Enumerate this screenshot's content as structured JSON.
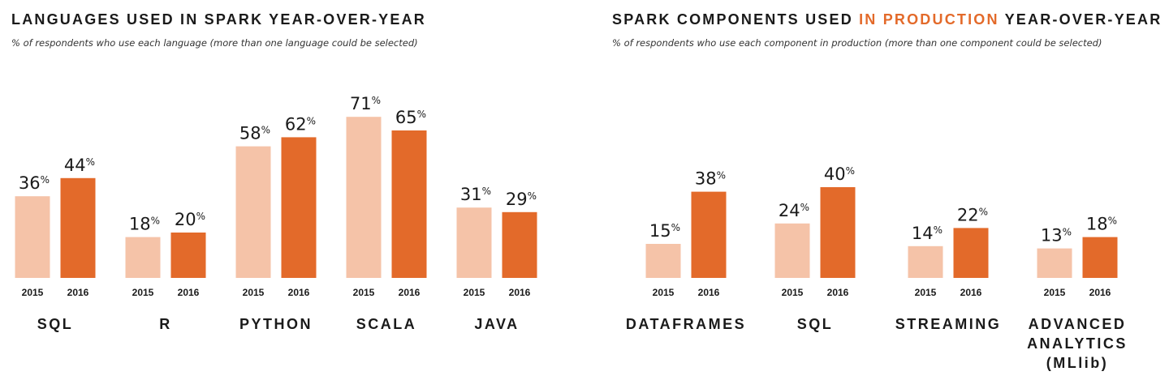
{
  "colors": {
    "y2015": "#f5c3a8",
    "y2016": "#e36a2a",
    "accent": "#e36a2a",
    "text": "#1a1a1a"
  },
  "chart_data": [
    {
      "type": "bar",
      "title": "LANGUAGES USED IN SPARK YEAR-OVER-YEAR",
      "subtitle": "% of respondents who use each language (more than one language could be selected)",
      "categories": [
        "SQL",
        "R",
        "PYTHON",
        "SCALA",
        "JAVA"
      ],
      "series": [
        {
          "name": "2015",
          "values": [
            36,
            18,
            58,
            71,
            31
          ]
        },
        {
          "name": "2016",
          "values": [
            44,
            20,
            62,
            65,
            29
          ]
        }
      ],
      "unit": "%",
      "ylim": [
        0,
        100
      ]
    },
    {
      "type": "bar",
      "title_parts": [
        "SPARK COMPONENTS USED ",
        "IN PRODUCTION",
        " YEAR-OVER-YEAR"
      ],
      "subtitle": "% of respondents who use each component in production (more than one component could be selected)",
      "categories": [
        "DATAFRAMES",
        "SQL",
        "STREAMING",
        "ADVANCED ANALYTICS (MLlib)"
      ],
      "category_lines": [
        [
          "DATAFRAMES"
        ],
        [
          "SQL"
        ],
        [
          "STREAMING"
        ],
        [
          "ADVANCED",
          "ANALYTICS",
          "(MLlib)"
        ]
      ],
      "series": [
        {
          "name": "2015",
          "values": [
            15,
            24,
            14,
            13
          ]
        },
        {
          "name": "2016",
          "values": [
            38,
            40,
            22,
            18
          ]
        }
      ],
      "unit": "%",
      "ylim": [
        0,
        100
      ]
    }
  ]
}
